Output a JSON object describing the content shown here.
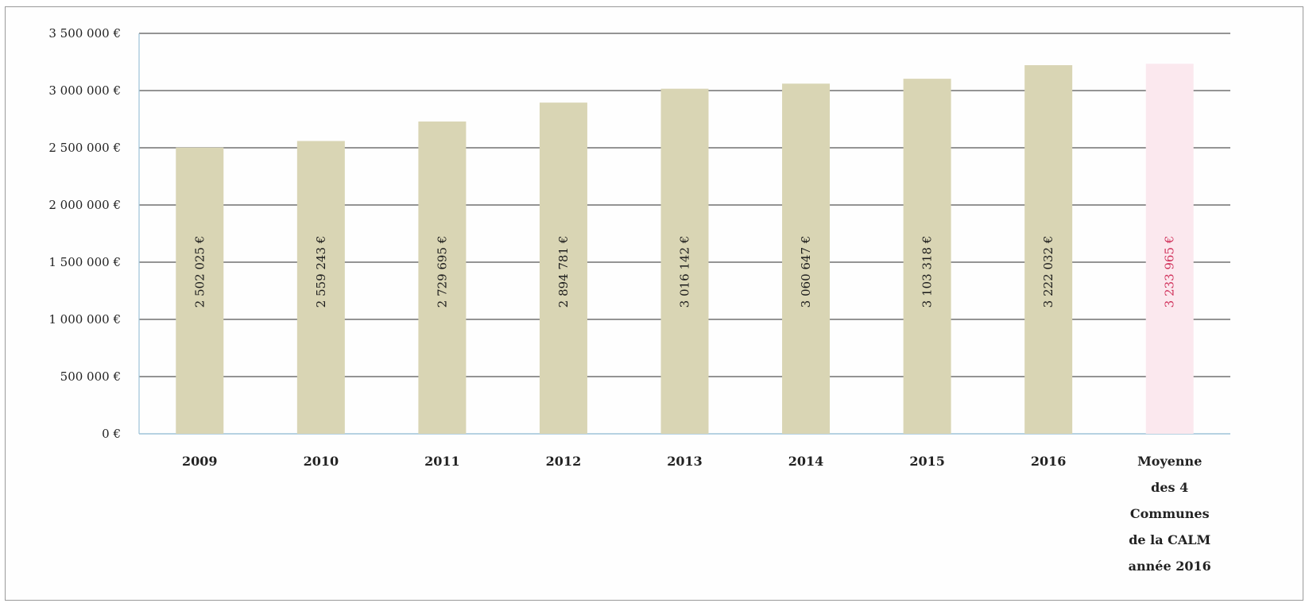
{
  "chart_data": {
    "type": "bar",
    "categories": [
      "2009",
      "2010",
      "2011",
      "2012",
      "2013",
      "2014",
      "2015",
      "2016",
      "Moyenne des 4 Communes de la CALM année 2016"
    ],
    "category_lines": [
      [
        "2009"
      ],
      [
        "2010"
      ],
      [
        "2011"
      ],
      [
        "2012"
      ],
      [
        "2013"
      ],
      [
        "2014"
      ],
      [
        "2015"
      ],
      [
        "2016"
      ],
      [
        "Moyenne",
        "des 4",
        "Communes",
        "de la CALM",
        "année 2016"
      ]
    ],
    "values": [
      2502025,
      2559243,
      2729695,
      2894781,
      3016142,
      3060647,
      3103318,
      3222032,
      3233965
    ],
    "data_labels": [
      "2 502 025 €",
      "2 559 243 €",
      "2 729 695 €",
      "2 894 781 €",
      "3 016 142 €",
      "3 060 647 €",
      "3 103 318 €",
      "3 222 032 €",
      "3 233 965 €"
    ],
    "y_tick_labels": [
      "0 €",
      "500 000 €",
      "1 000 000 €",
      "1 500 000 €",
      "2 000 000 €",
      "2 500 000 €",
      "3 000 000 €",
      "3 500 000 €"
    ],
    "y_ticks": [
      0,
      500000,
      1000000,
      1500000,
      2000000,
      2500000,
      3000000,
      3500000
    ],
    "ylim": [
      0,
      3500000
    ],
    "title": "",
    "xlabel": "",
    "ylabel": "",
    "grid": true,
    "legend": false,
    "colors": {
      "bar": "#d9d5b4",
      "highlight_bar": "#fbe8ee",
      "highlight_label": "#d0305a",
      "grid": "#555555",
      "axis": "#9ec3d8"
    }
  }
}
